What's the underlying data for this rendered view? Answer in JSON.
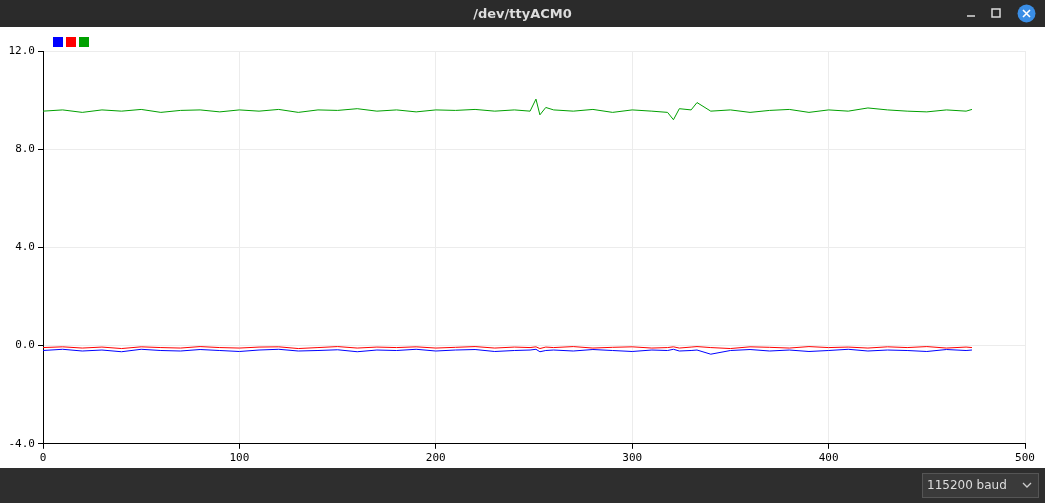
{
  "chart_data": {
    "type": "line",
    "title": "/dev/ttyACM0",
    "annotations": [
      "115200 baud"
    ],
    "x": [
      0,
      10,
      20,
      30,
      40,
      50,
      60,
      70,
      80,
      90,
      100,
      110,
      120,
      130,
      140,
      150,
      160,
      170,
      180,
      190,
      200,
      210,
      220,
      230,
      240,
      248,
      251,
      253,
      256,
      260,
      270,
      280,
      290,
      300,
      310,
      318,
      321,
      324,
      330,
      333,
      340,
      350,
      360,
      370,
      380,
      390,
      400,
      410,
      420,
      430,
      440,
      450,
      460,
      470,
      473
    ],
    "series": [
      {
        "color": "#0000ff",
        "values": [
          -0.2,
          -0.15,
          -0.22,
          -0.18,
          -0.25,
          -0.15,
          -0.2,
          -0.22,
          -0.16,
          -0.2,
          -0.24,
          -0.18,
          -0.15,
          -0.22,
          -0.2,
          -0.17,
          -0.25,
          -0.18,
          -0.2,
          -0.15,
          -0.22,
          -0.18,
          -0.16,
          -0.24,
          -0.2,
          -0.18,
          -0.15,
          -0.25,
          -0.2,
          -0.18,
          -0.22,
          -0.16,
          -0.2,
          -0.24,
          -0.18,
          -0.2,
          -0.15,
          -0.22,
          -0.2,
          -0.18,
          -0.35,
          -0.2,
          -0.16,
          -0.22,
          -0.18,
          -0.24,
          -0.2,
          -0.15,
          -0.22,
          -0.18,
          -0.2,
          -0.24,
          -0.16,
          -0.2,
          -0.18
        ]
      },
      {
        "color": "#ff0000",
        "values": [
          -0.08,
          -0.05,
          -0.1,
          -0.06,
          -0.12,
          -0.05,
          -0.08,
          -0.1,
          -0.04,
          -0.08,
          -0.1,
          -0.06,
          -0.05,
          -0.12,
          -0.08,
          -0.04,
          -0.1,
          -0.06,
          -0.08,
          -0.05,
          -0.1,
          -0.07,
          -0.04,
          -0.1,
          -0.06,
          -0.08,
          -0.05,
          -0.12,
          -0.06,
          -0.08,
          -0.04,
          -0.1,
          -0.07,
          -0.05,
          -0.1,
          -0.08,
          -0.05,
          -0.1,
          -0.06,
          -0.04,
          -0.08,
          -0.12,
          -0.05,
          -0.07,
          -0.1,
          -0.04,
          -0.08,
          -0.06,
          -0.1,
          -0.05,
          -0.08,
          -0.04,
          -0.1,
          -0.06,
          -0.08
        ]
      },
      {
        "color": "#00a000",
        "values": [
          9.55,
          9.6,
          9.5,
          9.6,
          9.55,
          9.62,
          9.5,
          9.58,
          9.6,
          9.52,
          9.6,
          9.55,
          9.62,
          9.5,
          9.6,
          9.58,
          9.65,
          9.55,
          9.6,
          9.52,
          9.6,
          9.58,
          9.62,
          9.55,
          9.6,
          9.55,
          10.04,
          9.4,
          9.7,
          9.6,
          9.55,
          9.62,
          9.5,
          9.6,
          9.55,
          9.5,
          9.2,
          9.65,
          9.6,
          9.9,
          9.55,
          9.6,
          9.5,
          9.58,
          9.62,
          9.5,
          9.6,
          9.55,
          9.68,
          9.6,
          9.55,
          9.52,
          9.6,
          9.55,
          9.62
        ]
      }
    ],
    "xlim": [
      0,
      500
    ],
    "xticks": [
      0,
      100,
      200,
      300,
      400,
      500
    ],
    "ylim": [
      -4,
      12
    ],
    "yticks": [
      {
        "value": -4,
        "label": "-4.0"
      },
      {
        "value": 0,
        "label": "0.0"
      },
      {
        "value": 4,
        "label": "4.0"
      },
      {
        "value": 8,
        "label": "8.0"
      },
      {
        "value": 12,
        "label": "12.0"
      }
    ],
    "grid": true,
    "marker": "none",
    "line_style": "solid"
  }
}
